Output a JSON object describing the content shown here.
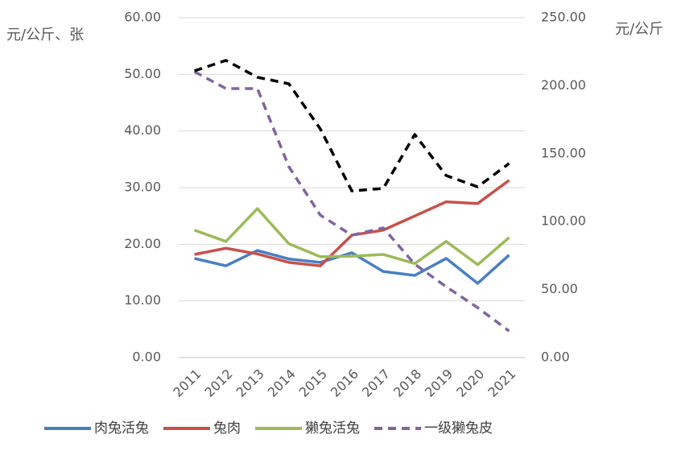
{
  "chart_data": {
    "type": "line",
    "y_label": "元/公斤、张",
    "y2_label": "元/公斤",
    "categories": [
      "2011",
      "2012",
      "2013",
      "2014",
      "2015",
      "2016",
      "2017",
      "2018",
      "2019",
      "2020",
      "2021"
    ],
    "ylim": [
      0,
      60
    ],
    "yticks": [
      {
        "value": 0,
        "label": "0.00"
      },
      {
        "value": 10,
        "label": "10.00"
      },
      {
        "value": 20,
        "label": "20.00"
      },
      {
        "value": 30,
        "label": "30.00"
      },
      {
        "value": 40,
        "label": "40.00"
      },
      {
        "value": 50,
        "label": "50.00"
      },
      {
        "value": 60,
        "label": "60.00"
      }
    ],
    "y2lim": [
      0,
      250
    ],
    "y2ticks": [
      {
        "value": 0,
        "label": "0.00"
      },
      {
        "value": 50,
        "label": "50.00"
      },
      {
        "value": 100,
        "label": "100.00"
      },
      {
        "value": 150,
        "label": "150.00"
      },
      {
        "value": 200,
        "label": "200.00"
      },
      {
        "value": 250,
        "label": "250.00"
      }
    ],
    "grid": true,
    "legend": "bottom",
    "series": [
      {
        "name": "肉兔活兔",
        "color": "#4a7fc1",
        "values": [
          17.5,
          16.2,
          18.9,
          17.4,
          16.8,
          18.5,
          15.2,
          14.5,
          17.5,
          13.1,
          18.1
        ]
      },
      {
        "name": "兔肉",
        "color": "#c9504b",
        "values": [
          18.2,
          19.3,
          18.3,
          16.8,
          16.2,
          21.6,
          22.5,
          25.0,
          27.5,
          27.2,
          31.3
        ]
      },
      {
        "name": "獭兔活兔",
        "color": "#9bbb59",
        "values": [
          22.5,
          20.5,
          26.3,
          20.1,
          17.8,
          17.9,
          18.2,
          16.6,
          20.5,
          16.4,
          21.2
        ]
      },
      {
        "name": "一级獭兔皮",
        "color": "#8064a2",
        "dashed": true,
        "axis": "y2",
        "values": [
          210.3,
          197.9,
          197.9,
          140.4,
          104.8,
          90.0,
          95.4,
          68.7,
          52.1,
          36.7,
          19.5
        ]
      },
      {
        "color": "#000000",
        "dashed": true,
        "axis": "y2",
        "values": [
          210.9,
          218.6,
          206.2,
          201.4,
          168.2,
          122.6,
          124.4,
          164.1,
          133.9,
          125.6,
          142.8
        ]
      }
    ]
  }
}
